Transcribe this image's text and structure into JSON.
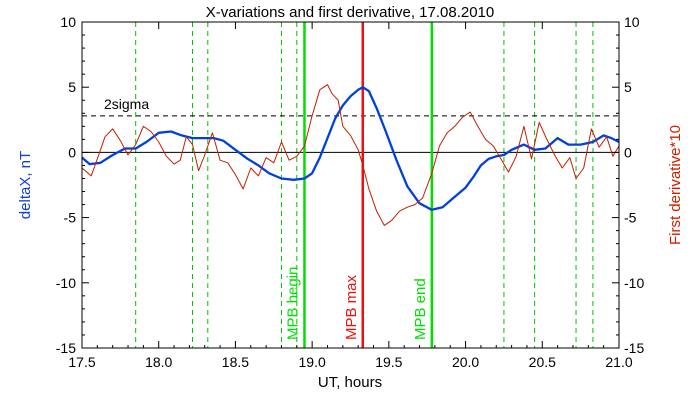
{
  "chart_data": {
    "type": "line",
    "title": "X-variations and first derivative, 17.08.2010",
    "xlabel": "UT, hours",
    "ylabel_left": "deltaX, nT",
    "ylabel_right": "First derivative*10",
    "xlim": [
      17.5,
      21.0
    ],
    "ylim": [
      -15,
      10
    ],
    "x_ticks": [
      "17.5",
      "18.0",
      "18.5",
      "19.0",
      "19.5",
      "20.0",
      "20.5",
      "21.0"
    ],
    "y_ticks_left": [
      "10",
      "5",
      "0",
      "-5",
      "-10",
      "-15"
    ],
    "y_ticks_right": [
      "10",
      "5",
      "0",
      "-5",
      "-10",
      "-15"
    ],
    "colors": {
      "deltaX": "#0040e0",
      "derivative": "#c02000",
      "mpb_edges": "#00e000",
      "mpb_max": "#ee1010",
      "dashed": "#00c000",
      "left_label": "#1040d0",
      "right_label": "#d02000"
    },
    "sigma": {
      "label": "2sigma",
      "value": 2.8
    },
    "markers": [
      {
        "label": "MPB begin",
        "x": 18.95,
        "color": "#00e000"
      },
      {
        "label": "MPB max",
        "x": 19.33,
        "color": "#ee1010"
      },
      {
        "label": "MPB end",
        "x": 19.78,
        "color": "#00e000"
      }
    ],
    "dashed_verticals": [
      17.85,
      18.22,
      18.32,
      18.8,
      18.9,
      20.25,
      20.45,
      20.72,
      20.83
    ],
    "series": [
      {
        "name": "deltaX",
        "x": [
          17.5,
          17.55,
          17.62,
          17.7,
          17.78,
          17.85,
          17.92,
          18.0,
          18.08,
          18.15,
          18.22,
          18.3,
          18.36,
          18.42,
          18.5,
          18.58,
          18.65,
          18.72,
          18.8,
          18.88,
          18.95,
          19.0,
          19.05,
          19.1,
          19.15,
          19.2,
          19.25,
          19.3,
          19.33,
          19.37,
          19.42,
          19.48,
          19.55,
          19.62,
          19.7,
          19.78,
          19.85,
          19.92,
          20.0,
          20.05,
          20.1,
          20.15,
          20.2,
          20.25,
          20.3,
          20.38,
          20.45,
          20.52,
          20.6,
          20.67,
          20.75,
          20.83,
          20.9,
          20.95,
          21.0
        ],
        "values": [
          -0.4,
          -0.9,
          -0.8,
          -0.2,
          0.3,
          0.3,
          0.8,
          1.5,
          1.6,
          1.3,
          1.1,
          1.1,
          1.1,
          0.9,
          0.2,
          -0.5,
          -1.0,
          -1.6,
          -2.0,
          -2.1,
          -2.0,
          -1.6,
          -0.4,
          1.1,
          2.6,
          3.6,
          4.3,
          4.8,
          5.0,
          4.7,
          3.4,
          1.6,
          -0.6,
          -2.6,
          -3.9,
          -4.4,
          -4.2,
          -3.5,
          -2.7,
          -1.9,
          -1.0,
          -0.5,
          -0.3,
          -0.2,
          0.2,
          0.6,
          0.2,
          0.3,
          1.1,
          0.6,
          0.6,
          0.8,
          1.3,
          1.1,
          0.8
        ]
      },
      {
        "name": "First derivative*10",
        "x": [
          17.5,
          17.56,
          17.6,
          17.65,
          17.7,
          17.75,
          17.8,
          17.85,
          17.9,
          17.95,
          18.0,
          18.05,
          18.1,
          18.14,
          18.18,
          18.22,
          18.26,
          18.3,
          18.35,
          18.4,
          18.45,
          18.5,
          18.55,
          18.6,
          18.65,
          18.7,
          18.75,
          18.8,
          18.85,
          18.9,
          18.95,
          19.0,
          19.05,
          19.1,
          19.13,
          19.17,
          19.2,
          19.25,
          19.3,
          19.33,
          19.37,
          19.42,
          19.47,
          19.52,
          19.57,
          19.62,
          19.67,
          19.72,
          19.78,
          19.83,
          19.88,
          19.93,
          19.98,
          20.03,
          20.08,
          20.13,
          20.18,
          20.23,
          20.28,
          20.33,
          20.38,
          20.43,
          20.48,
          20.53,
          20.58,
          20.63,
          20.68,
          20.72,
          20.77,
          20.82,
          20.87,
          20.92,
          20.96,
          21.0
        ],
        "values": [
          -1.2,
          -1.8,
          -0.5,
          1.2,
          1.8,
          0.9,
          -0.2,
          0.6,
          2.0,
          1.6,
          0.8,
          -0.3,
          -0.9,
          -0.6,
          1.2,
          0.6,
          -1.4,
          -0.2,
          1.5,
          -0.6,
          -0.8,
          -1.7,
          -2.8,
          -1.2,
          -1.8,
          -0.4,
          -0.8,
          0.8,
          -0.6,
          -0.3,
          0.5,
          2.8,
          4.8,
          5.2,
          4.5,
          4.0,
          2.0,
          1.3,
          0.2,
          -1.0,
          -2.8,
          -4.5,
          -5.6,
          -5.2,
          -4.5,
          -4.2,
          -4.0,
          -3.5,
          -1.6,
          0.5,
          1.5,
          2.0,
          2.7,
          3.1,
          2.0,
          1.0,
          0.5,
          -0.5,
          -1.5,
          -0.3,
          2.0,
          -0.5,
          2.3,
          1.0,
          -0.2,
          -1.2,
          -0.4,
          -2.0,
          -1.2,
          1.8,
          0.4,
          1.2,
          -0.3,
          0.5
        ]
      }
    ]
  }
}
